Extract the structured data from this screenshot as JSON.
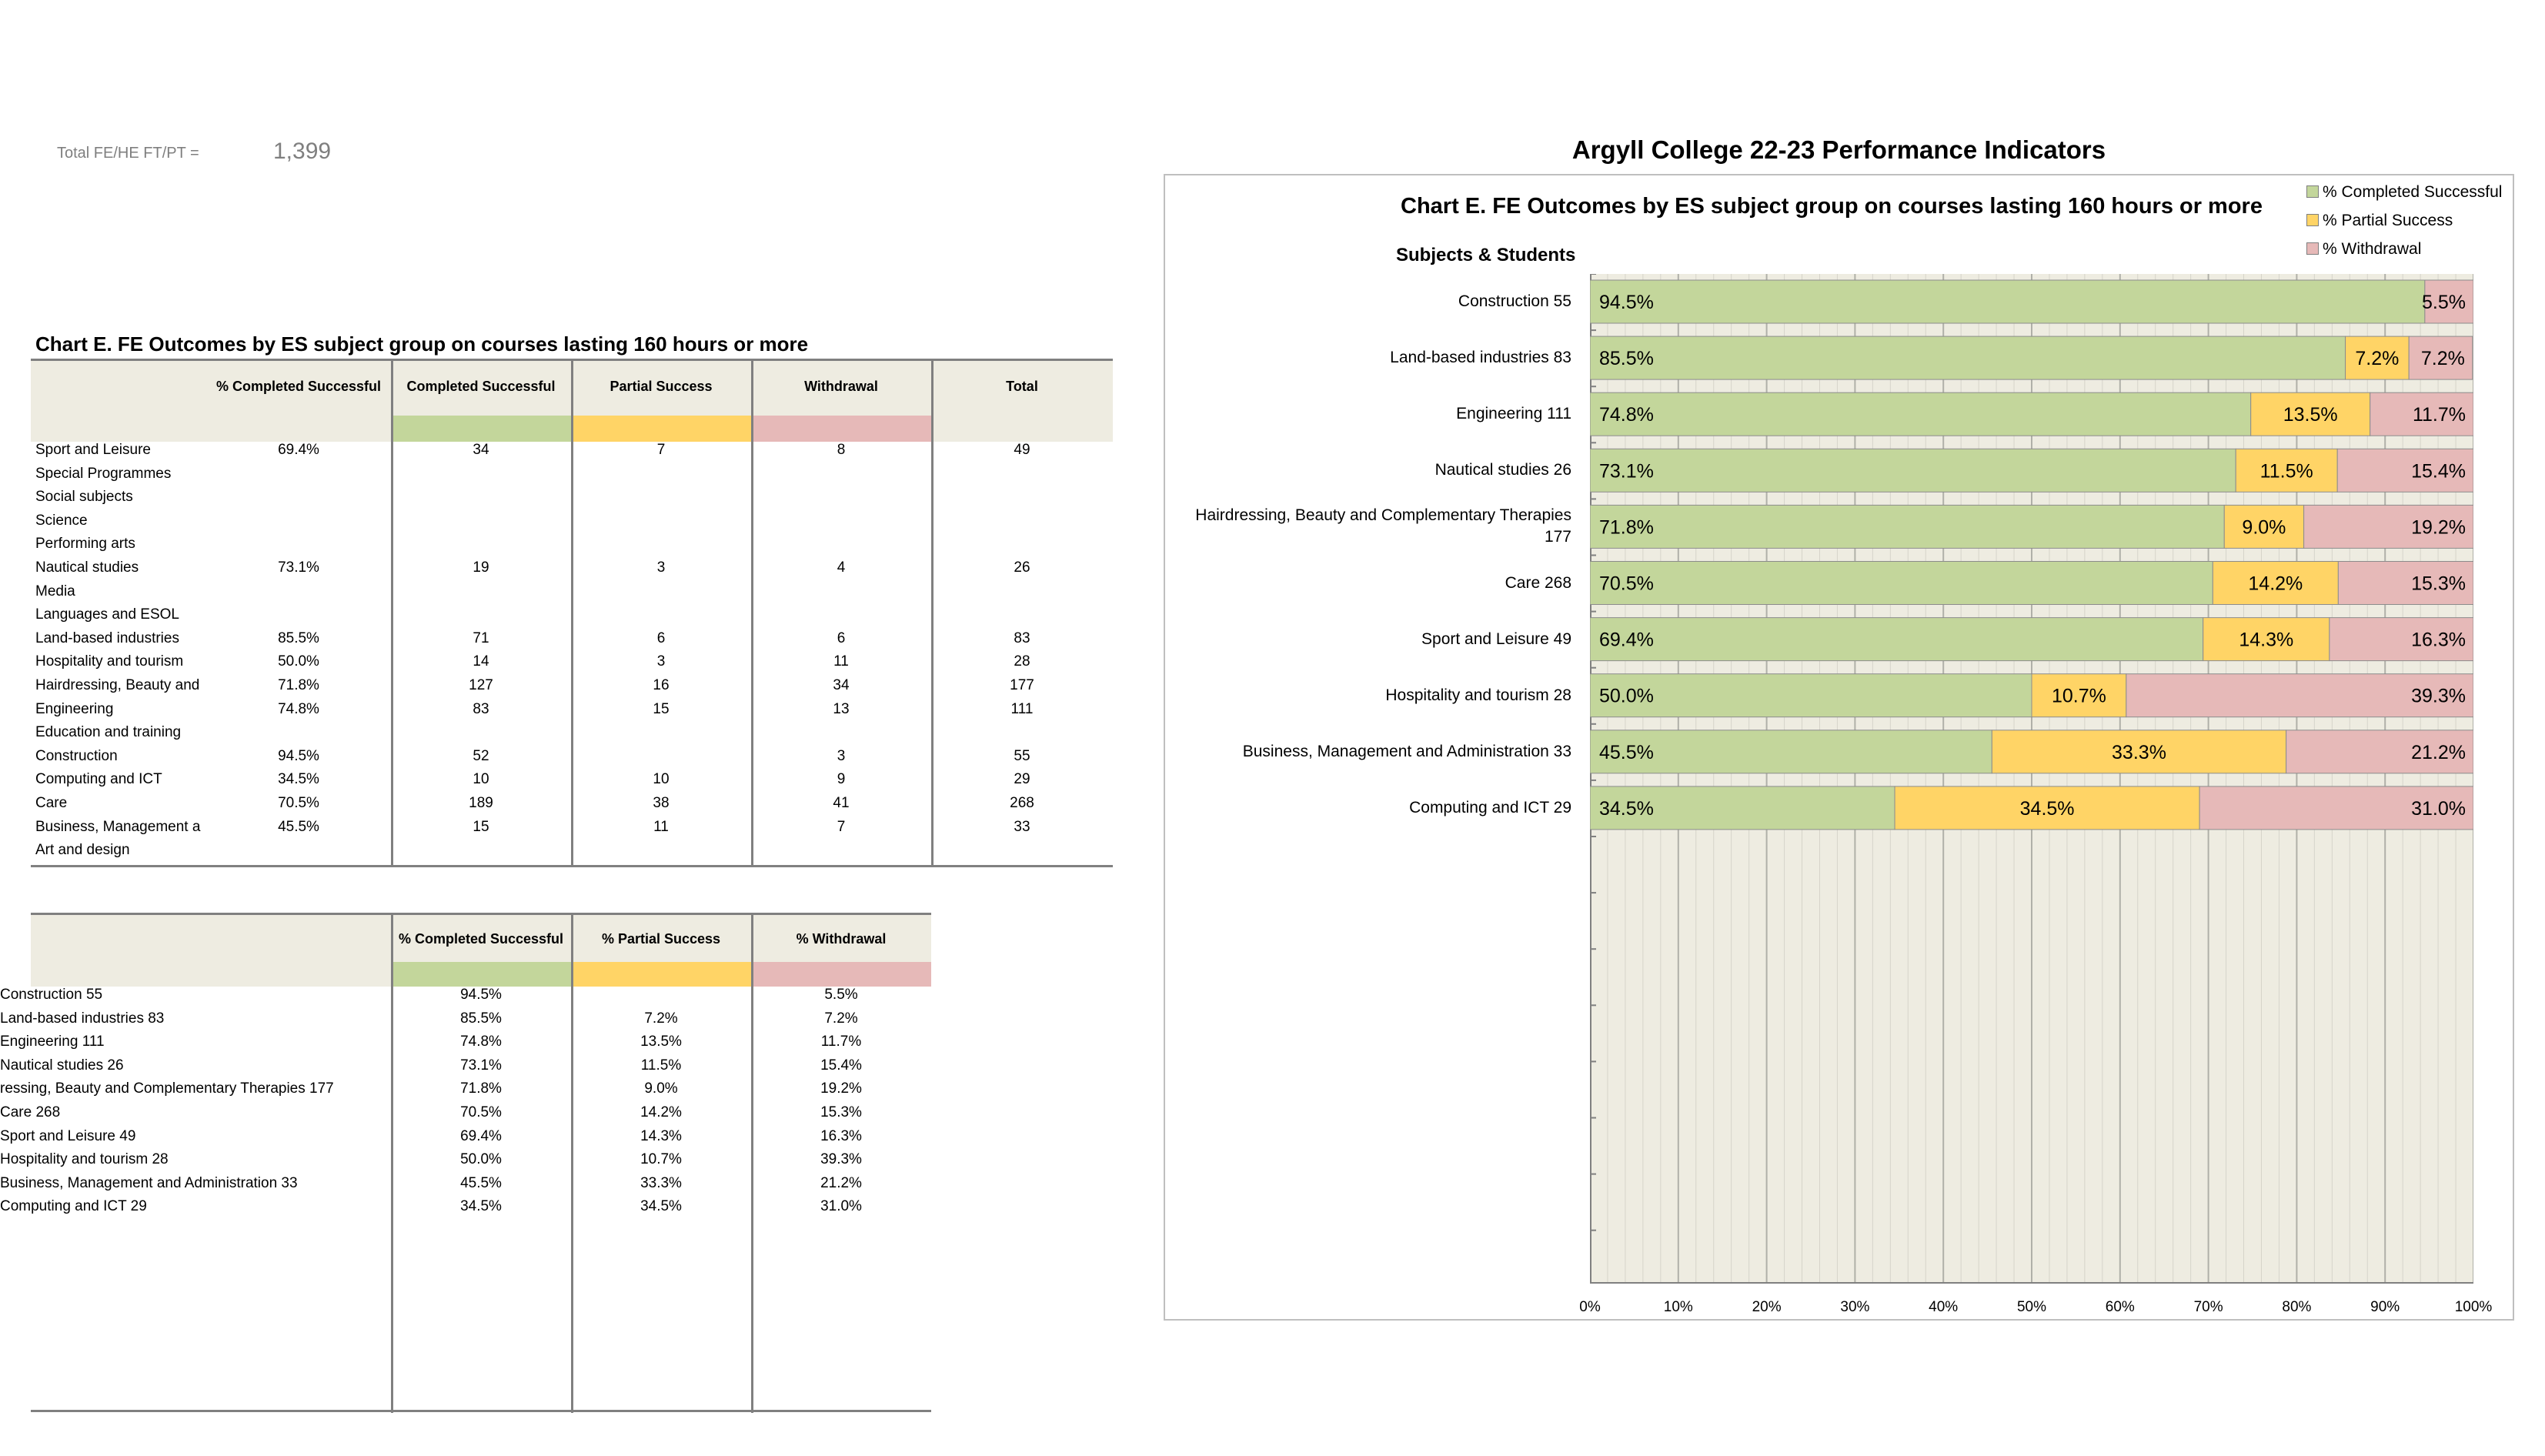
{
  "header": {
    "total_label": "Total FE/HE FT/PT =",
    "total_value": "1,399"
  },
  "page_title": "Argyll College 22-23 Performance Indicators",
  "table1": {
    "title": "Chart E. FE Outcomes by ES subject group on courses lasting 160 hours or more",
    "headers": [
      "% Completed Successful",
      "Completed Successful",
      "Partial Success",
      "Withdrawal",
      "Total"
    ],
    "rows": [
      {
        "subject": "Sport and Leisure",
        "pct": "69.4%",
        "completed": "34",
        "partial": "7",
        "withdrawal": "8",
        "total": "49"
      },
      {
        "subject": "Special Programmes",
        "pct": "",
        "completed": "",
        "partial": "",
        "withdrawal": "",
        "total": ""
      },
      {
        "subject": "Social subjects",
        "pct": "",
        "completed": "",
        "partial": "",
        "withdrawal": "",
        "total": ""
      },
      {
        "subject": "Science",
        "pct": "",
        "completed": "",
        "partial": "",
        "withdrawal": "",
        "total": ""
      },
      {
        "subject": "Performing arts",
        "pct": "",
        "completed": "",
        "partial": "",
        "withdrawal": "",
        "total": ""
      },
      {
        "subject": "Nautical studies",
        "pct": "73.1%",
        "completed": "19",
        "partial": "3",
        "withdrawal": "4",
        "total": "26"
      },
      {
        "subject": "Media",
        "pct": "",
        "completed": "",
        "partial": "",
        "withdrawal": "",
        "total": ""
      },
      {
        "subject": "Languages and ESOL",
        "pct": "",
        "completed": "",
        "partial": "",
        "withdrawal": "",
        "total": ""
      },
      {
        "subject": "Land-based industries",
        "pct": "85.5%",
        "completed": "71",
        "partial": "6",
        "withdrawal": "6",
        "total": "83"
      },
      {
        "subject": "Hospitality and tourism",
        "pct": "50.0%",
        "completed": "14",
        "partial": "3",
        "withdrawal": "11",
        "total": "28"
      },
      {
        "subject": "Hairdressing, Beauty and",
        "pct": "71.8%",
        "completed": "127",
        "partial": "16",
        "withdrawal": "34",
        "total": "177"
      },
      {
        "subject": "Engineering",
        "pct": "74.8%",
        "completed": "83",
        "partial": "15",
        "withdrawal": "13",
        "total": "111"
      },
      {
        "subject": "Education and training",
        "pct": "",
        "completed": "",
        "partial": "",
        "withdrawal": "",
        "total": ""
      },
      {
        "subject": "Construction",
        "pct": "94.5%",
        "completed": "52",
        "partial": "",
        "withdrawal": "3",
        "total": "55"
      },
      {
        "subject": "Computing and ICT",
        "pct": "34.5%",
        "completed": "10",
        "partial": "10",
        "withdrawal": "9",
        "total": "29"
      },
      {
        "subject": "Care",
        "pct": "70.5%",
        "completed": "189",
        "partial": "38",
        "withdrawal": "41",
        "total": "268"
      },
      {
        "subject": "Business, Management a",
        "pct": "45.5%",
        "completed": "15",
        "partial": "11",
        "withdrawal": "7",
        "total": "33"
      },
      {
        "subject": "Art and design",
        "pct": "",
        "completed": "",
        "partial": "",
        "withdrawal": "",
        "total": ""
      }
    ]
  },
  "table2": {
    "headers": [
      "% Completed Successful",
      "% Partial Success",
      "% Withdrawal"
    ],
    "rows": [
      {
        "subject": "Construction  55",
        "completed": "94.5%",
        "partial": "",
        "withdrawal": "5.5%"
      },
      {
        "subject": "Land-based industries  83",
        "completed": "85.5%",
        "partial": "7.2%",
        "withdrawal": "7.2%"
      },
      {
        "subject": "Engineering  111",
        "completed": "74.8%",
        "partial": "13.5%",
        "withdrawal": "11.7%"
      },
      {
        "subject": "Nautical studies  26",
        "completed": "73.1%",
        "partial": "11.5%",
        "withdrawal": "15.4%"
      },
      {
        "subject": "ressing, Beauty and Complementary Therapies  177",
        "completed": "71.8%",
        "partial": "9.0%",
        "withdrawal": "19.2%"
      },
      {
        "subject": "Care  268",
        "completed": "70.5%",
        "partial": "14.2%",
        "withdrawal": "15.3%"
      },
      {
        "subject": "Sport and Leisure  49",
        "completed": "69.4%",
        "partial": "14.3%",
        "withdrawal": "16.3%"
      },
      {
        "subject": "Hospitality and tourism  28",
        "completed": "50.0%",
        "partial": "10.7%",
        "withdrawal": "39.3%"
      },
      {
        "subject": "Business, Management and Administration  33",
        "completed": "45.5%",
        "partial": "33.3%",
        "withdrawal": "21.2%"
      },
      {
        "subject": "Computing and ICT  29",
        "completed": "34.5%",
        "partial": "34.5%",
        "withdrawal": "31.0%"
      }
    ]
  },
  "colors": {
    "completed": "#c3d69b",
    "partial": "#ffd466",
    "withdrawal": "#e6b9b8",
    "band": "#eeece1"
  },
  "chart_data": {
    "type": "bar",
    "orientation": "horizontal",
    "stacked": true,
    "title": "Chart E. FE Outcomes by ES subject group on courses lasting 160 hours or more",
    "ylabel": "Subjects & Students",
    "categories": [
      "Construction  55",
      "Land-based industries  83",
      "Engineering  111",
      "Nautical studies  26",
      "Hairdressing, Beauty and Complementary Therapies 177",
      "Care  268",
      "Sport and Leisure  49",
      "Hospitality and tourism  28",
      "Business, Management and Administration  33",
      "Computing and ICT  29"
    ],
    "series": [
      {
        "name": "% Completed Successful",
        "color": "#c3d69b",
        "values": [
          94.5,
          85.5,
          74.8,
          73.1,
          71.8,
          70.5,
          69.4,
          50.0,
          45.5,
          34.5
        ]
      },
      {
        "name": "% Partial Success",
        "color": "#ffd466",
        "values": [
          0,
          7.2,
          13.5,
          11.5,
          9.0,
          14.2,
          14.3,
          10.7,
          33.3,
          34.5
        ]
      },
      {
        "name": "% Withdrawal",
        "color": "#e6b9b8",
        "values": [
          5.5,
          7.2,
          11.7,
          15.4,
          19.2,
          15.3,
          16.3,
          39.3,
          21.2,
          31.0
        ]
      }
    ],
    "xlim": [
      0,
      100
    ],
    "xticks": [
      "0%",
      "10%",
      "20%",
      "30%",
      "40%",
      "50%",
      "60%",
      "70%",
      "80%",
      "90%",
      "100%"
    ],
    "legend_position": "top-right",
    "grid": true
  }
}
